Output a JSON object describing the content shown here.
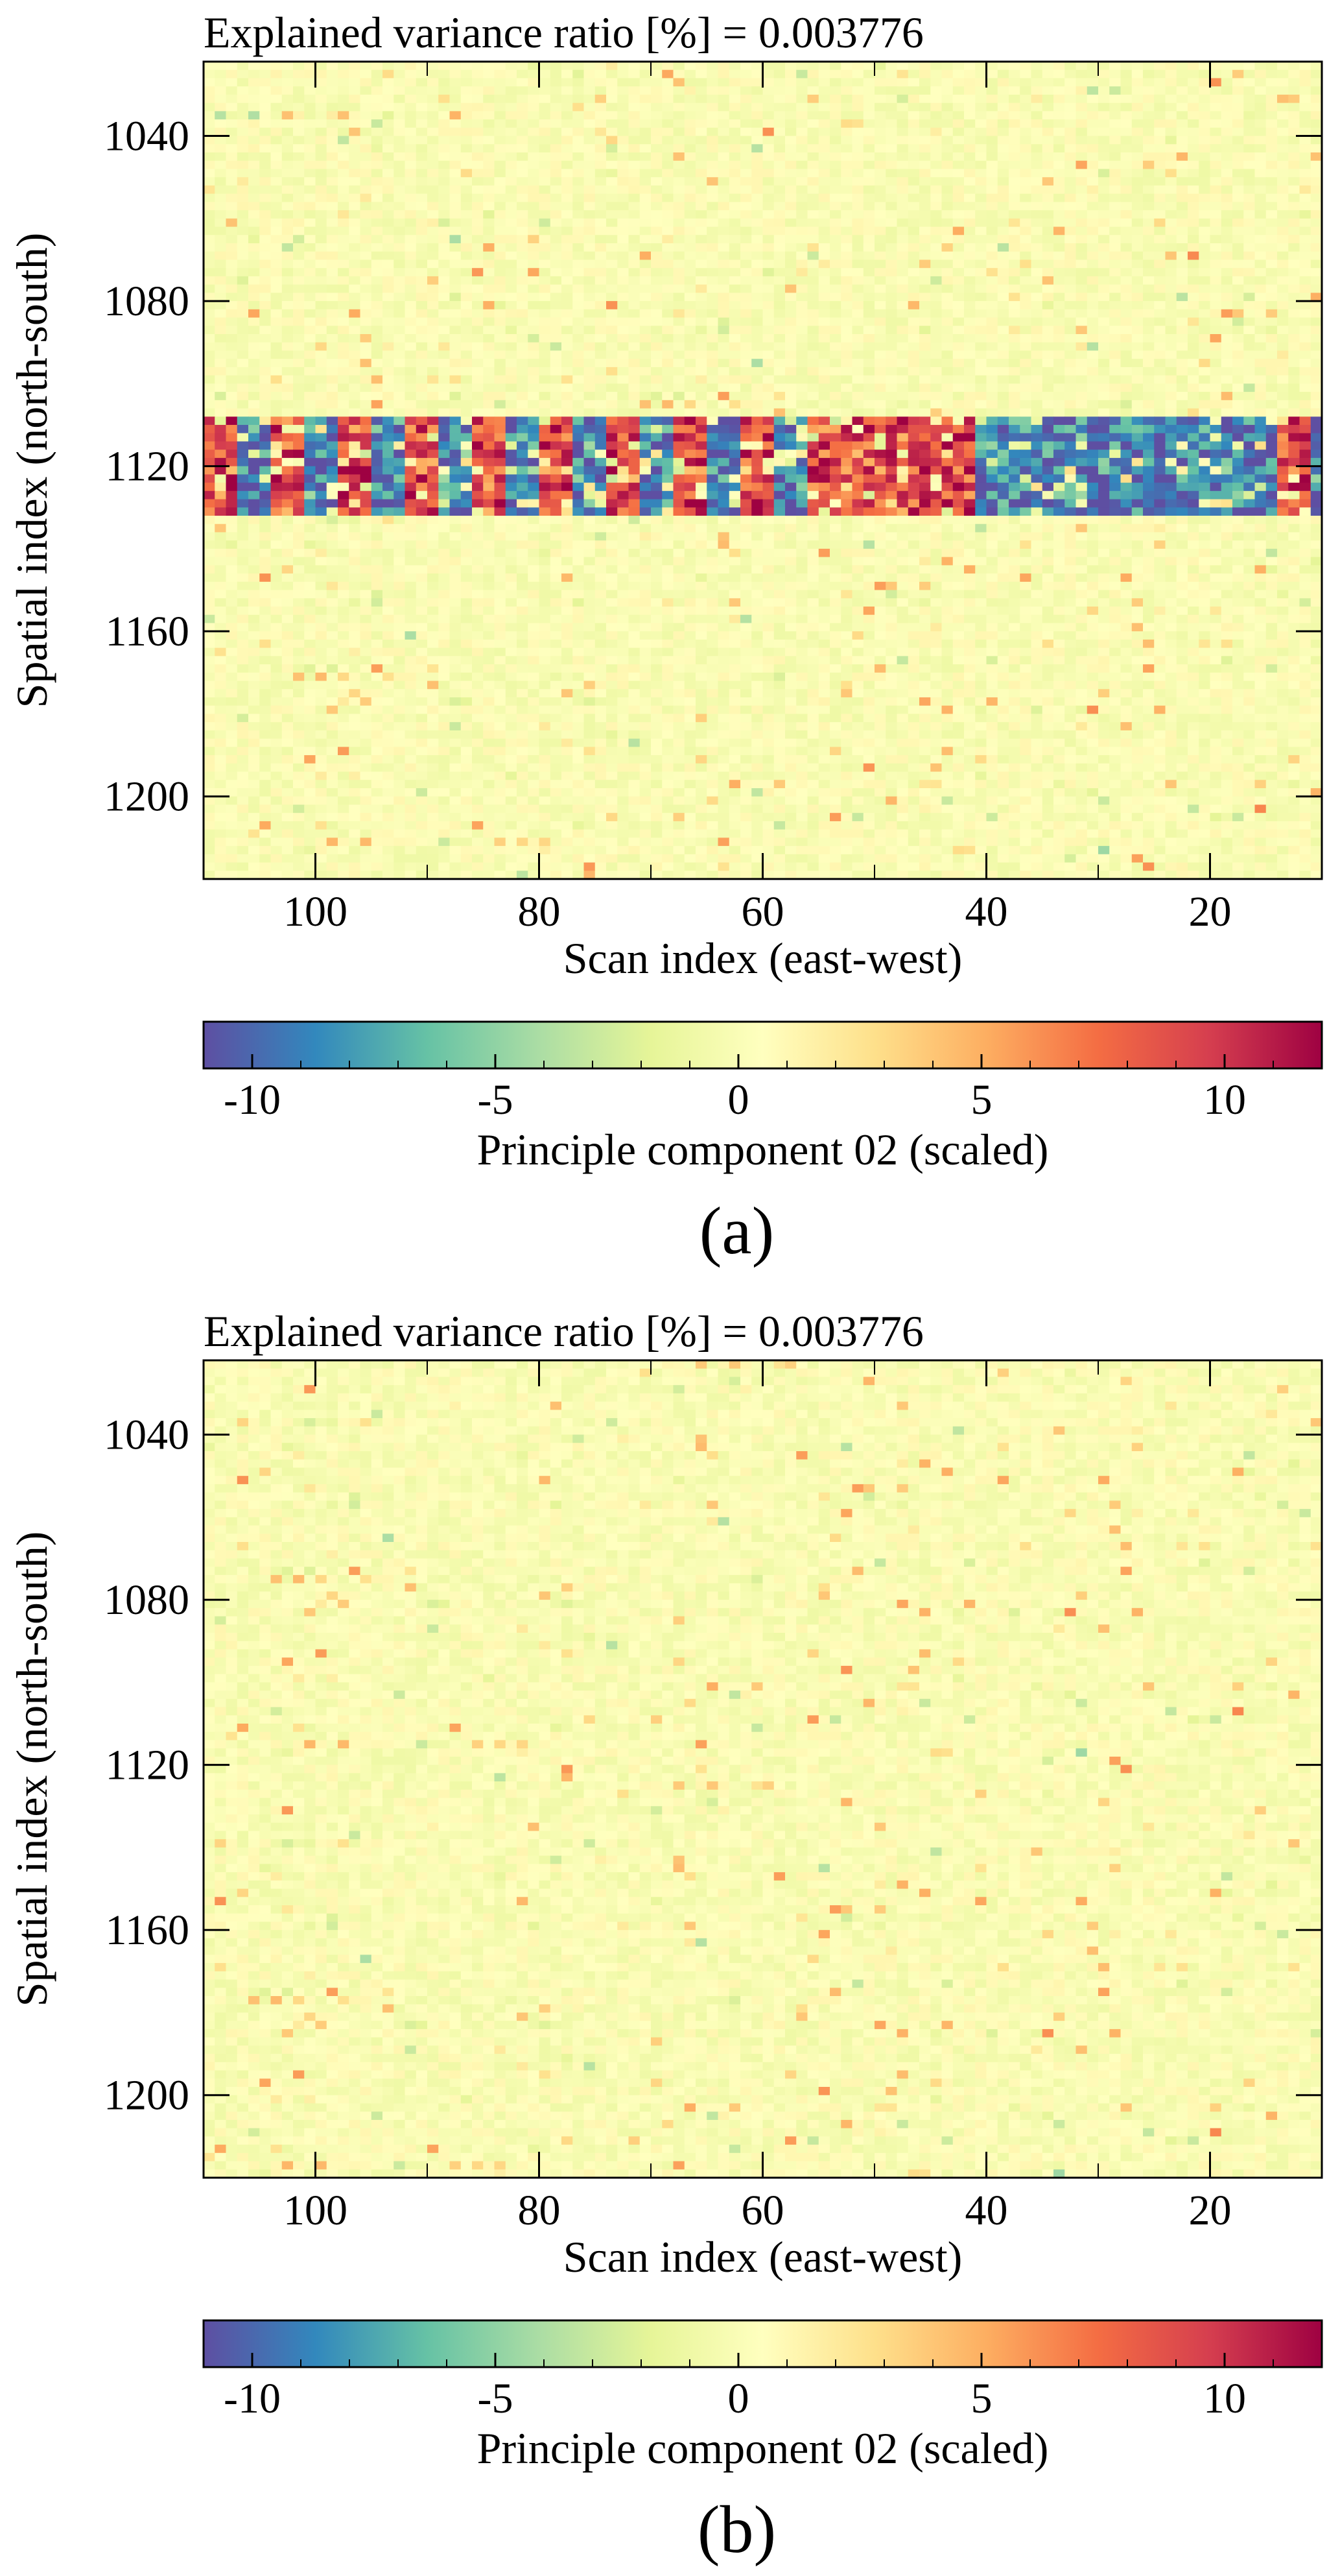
{
  "chart_data": [
    {
      "panel_label": "(a)",
      "type": "heatmap",
      "title": "Explained variance ratio [%] =  0.003776",
      "xlabel": "Scan index (east-west)",
      "ylabel": "Spatial index (north-south)",
      "xlim": [
        110,
        10
      ],
      "ylim": [
        1220,
        1022
      ],
      "xticks": [
        "100",
        "80",
        "60",
        "40",
        "20"
      ],
      "yticks": [
        "1040",
        "1080",
        "1120",
        "1160",
        "1200"
      ],
      "grid": false,
      "colormap": "Spectral_r",
      "colorbar": {
        "label": "Principle component 02 (scaled)",
        "range": [
          -11,
          12
        ],
        "ticks": [
          "-10",
          "-5",
          "0",
          "5",
          "10"
        ]
      },
      "features": {
        "strong_band": {
          "rows": [
            1108,
            1132
          ],
          "cols": [
            10,
            110
          ],
          "description_values": "alternating strongly negative (~-11) and strongly positive (~+11) segments, positive red cluster near scan 45-55, deep blue blocks near scan 10-40"
        },
        "background_level": 0.5
      }
    },
    {
      "panel_label": "(b)",
      "type": "heatmap",
      "title": "Explained variance ratio [%] =  0.003776",
      "xlabel": "Scan index (east-west)",
      "ylabel": "Spatial index (north-south)",
      "xlim": [
        110,
        10
      ],
      "ylim": [
        1220,
        1022
      ],
      "xticks": [
        "100",
        "80",
        "60",
        "40",
        "20"
      ],
      "yticks": [
        "1040",
        "1080",
        "1120",
        "1160",
        "1200"
      ],
      "grid": false,
      "colormap": "Spectral_r",
      "colorbar": {
        "label": "Principle component 02 (scaled)",
        "range": [
          -11,
          12
        ],
        "ticks": [
          "-10",
          "-5",
          "0",
          "5",
          "10"
        ]
      },
      "features": {
        "strong_band": null,
        "background_level": 0.5
      }
    }
  ]
}
